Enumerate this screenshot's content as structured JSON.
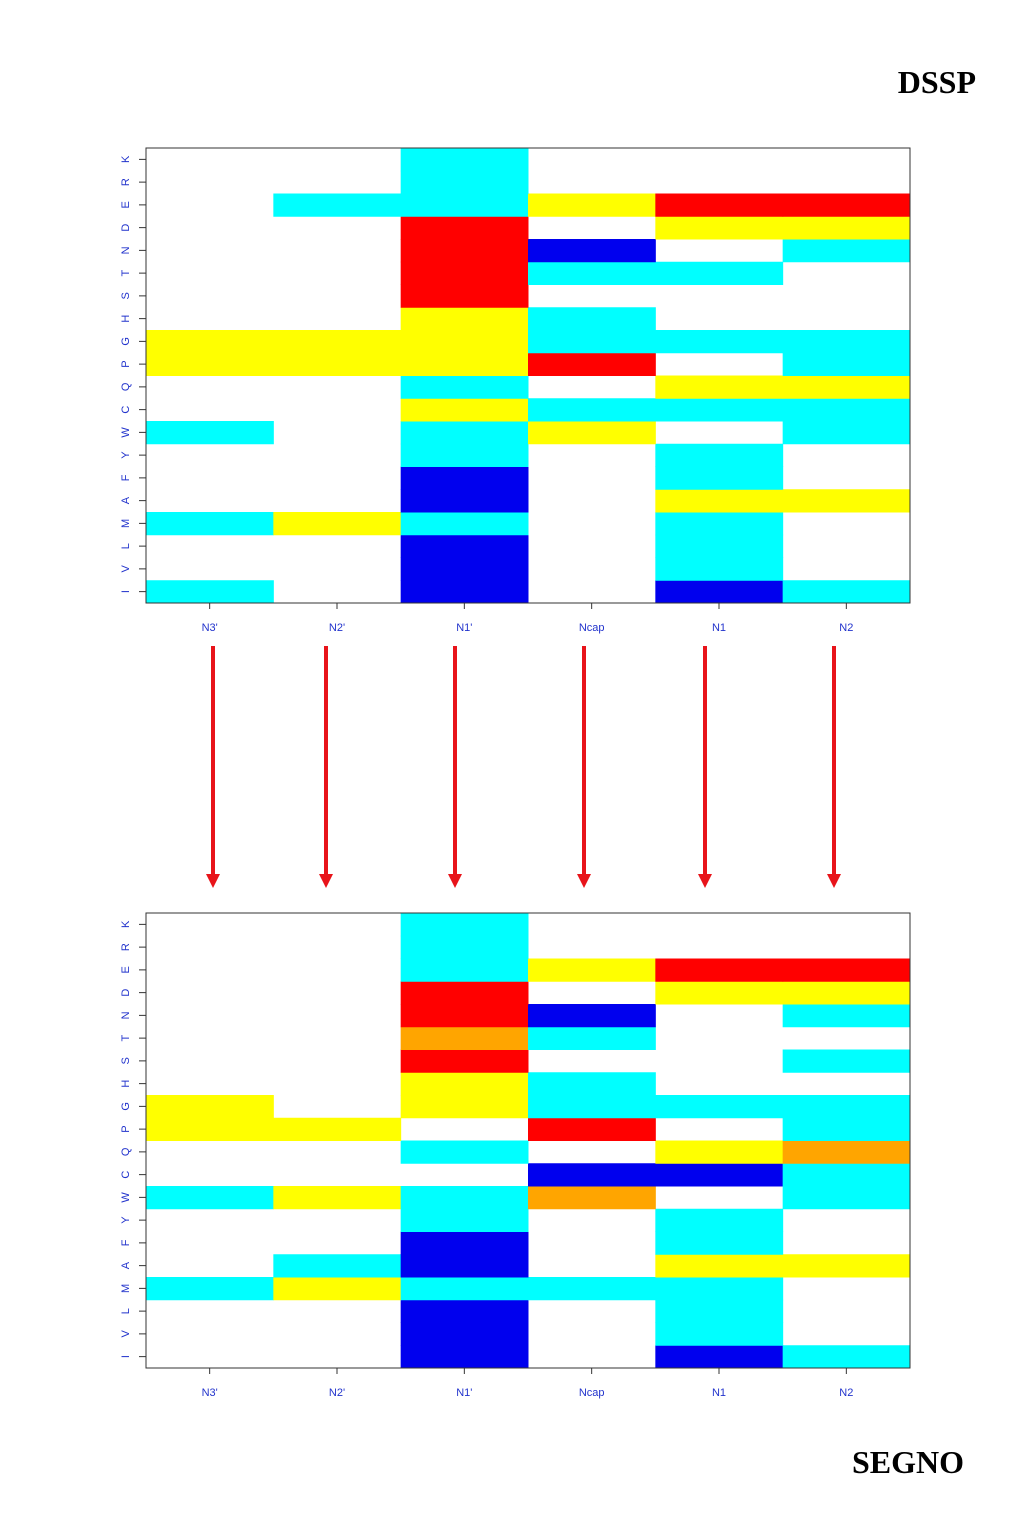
{
  "labels": {
    "top": "DSSP",
    "bottom": "SEGNO"
  },
  "colors": {
    "blank": "#ffffff",
    "cyan": "#00ffff",
    "yellow": "#ffff00",
    "red": "#ff0000",
    "blue": "#0000ee",
    "orange": "#ffa500",
    "axis_text": "#2233cc",
    "arrow": "#e8141a"
  },
  "chart_data": [
    {
      "type": "heatmap",
      "name": "DSSP",
      "x_categories": [
        "N3'",
        "N2'",
        "N1'",
        "Ncap",
        "N1",
        "N2"
      ],
      "y_categories": [
        "I",
        "V",
        "L",
        "M",
        "A",
        "F",
        "Y",
        "W",
        "C",
        "Q",
        "P",
        "G",
        "H",
        "S",
        "T",
        "N",
        "D",
        "E",
        "R",
        "K"
      ],
      "cells": {
        "K": [
          "blank",
          "blank",
          "cyan",
          "blank",
          "blank",
          "blank"
        ],
        "R": [
          "blank",
          "blank",
          "cyan",
          "blank",
          "blank",
          "blank"
        ],
        "E": [
          "blank",
          "cyan",
          "cyan",
          "yellow",
          "red",
          "red"
        ],
        "D": [
          "blank",
          "blank",
          "red",
          "blank",
          "yellow",
          "yellow"
        ],
        "N": [
          "blank",
          "blank",
          "red",
          "blue",
          "blank",
          "cyan"
        ],
        "T": [
          "blank",
          "blank",
          "red",
          "cyan",
          "cyan",
          "blank"
        ],
        "S": [
          "blank",
          "blank",
          "red",
          "blank",
          "blank",
          "blank"
        ],
        "H": [
          "blank",
          "blank",
          "yellow",
          "cyan",
          "blank",
          "blank"
        ],
        "G": [
          "yellow",
          "yellow",
          "yellow",
          "cyan",
          "cyan",
          "cyan"
        ],
        "P": [
          "yellow",
          "yellow",
          "yellow",
          "red",
          "blank",
          "cyan"
        ],
        "Q": [
          "blank",
          "blank",
          "cyan",
          "blank",
          "yellow",
          "yellow"
        ],
        "C": [
          "blank",
          "blank",
          "yellow",
          "cyan",
          "cyan",
          "cyan"
        ],
        "W": [
          "cyan",
          "blank",
          "cyan",
          "yellow",
          "blank",
          "cyan"
        ],
        "Y": [
          "blank",
          "blank",
          "cyan",
          "blank",
          "cyan",
          "blank"
        ],
        "F": [
          "blank",
          "blank",
          "blue",
          "blank",
          "cyan",
          "blank"
        ],
        "A": [
          "blank",
          "blank",
          "blue",
          "blank",
          "yellow",
          "yellow"
        ],
        "M": [
          "cyan",
          "yellow",
          "cyan",
          "blank",
          "cyan",
          "blank"
        ],
        "L": [
          "blank",
          "blank",
          "blue",
          "blank",
          "cyan",
          "blank"
        ],
        "V": [
          "blank",
          "blank",
          "blue",
          "blank",
          "cyan",
          "blank"
        ],
        "I": [
          "cyan",
          "blank",
          "blue",
          "blank",
          "blue",
          "cyan"
        ]
      },
      "legend": "none"
    },
    {
      "type": "heatmap",
      "name": "SEGNO",
      "x_categories": [
        "N3'",
        "N2'",
        "N1'",
        "Ncap",
        "N1",
        "N2"
      ],
      "y_categories": [
        "I",
        "V",
        "L",
        "M",
        "A",
        "F",
        "Y",
        "W",
        "C",
        "Q",
        "P",
        "G",
        "H",
        "S",
        "T",
        "N",
        "D",
        "E",
        "R",
        "K"
      ],
      "cells": {
        "K": [
          "blank",
          "blank",
          "cyan",
          "blank",
          "blank",
          "blank"
        ],
        "R": [
          "blank",
          "blank",
          "cyan",
          "blank",
          "blank",
          "blank"
        ],
        "E": [
          "blank",
          "blank",
          "cyan",
          "yellow",
          "red",
          "red"
        ],
        "D": [
          "blank",
          "blank",
          "red",
          "blank",
          "yellow",
          "yellow"
        ],
        "N": [
          "blank",
          "blank",
          "red",
          "blue",
          "blank",
          "cyan"
        ],
        "T": [
          "blank",
          "blank",
          "orange",
          "cyan",
          "blank",
          "blank"
        ],
        "S": [
          "blank",
          "blank",
          "red",
          "blank",
          "blank",
          "cyan"
        ],
        "H": [
          "blank",
          "blank",
          "yellow",
          "cyan",
          "blank",
          "blank"
        ],
        "G": [
          "yellow",
          "blank",
          "yellow",
          "cyan",
          "cyan",
          "cyan"
        ],
        "P": [
          "yellow",
          "yellow",
          "blank",
          "red",
          "blank",
          "cyan"
        ],
        "Q": [
          "blank",
          "blank",
          "cyan",
          "blank",
          "yellow",
          "orange"
        ],
        "C": [
          "blank",
          "blank",
          "blank",
          "blue",
          "blue",
          "cyan"
        ],
        "W": [
          "cyan",
          "yellow",
          "cyan",
          "orange",
          "blank",
          "cyan"
        ],
        "Y": [
          "blank",
          "blank",
          "cyan",
          "blank",
          "cyan",
          "blank"
        ],
        "F": [
          "blank",
          "blank",
          "blue",
          "blank",
          "cyan",
          "blank"
        ],
        "A": [
          "blank",
          "cyan",
          "blue",
          "blank",
          "yellow",
          "yellow"
        ],
        "M": [
          "cyan",
          "yellow",
          "cyan",
          "cyan",
          "cyan",
          "blank"
        ],
        "L": [
          "blank",
          "blank",
          "blue",
          "blank",
          "cyan",
          "blank"
        ],
        "V": [
          "blank",
          "blank",
          "blue",
          "blank",
          "cyan",
          "blank"
        ],
        "I": [
          "blank",
          "blank",
          "blue",
          "blank",
          "blue",
          "cyan"
        ]
      },
      "legend": "none"
    }
  ]
}
